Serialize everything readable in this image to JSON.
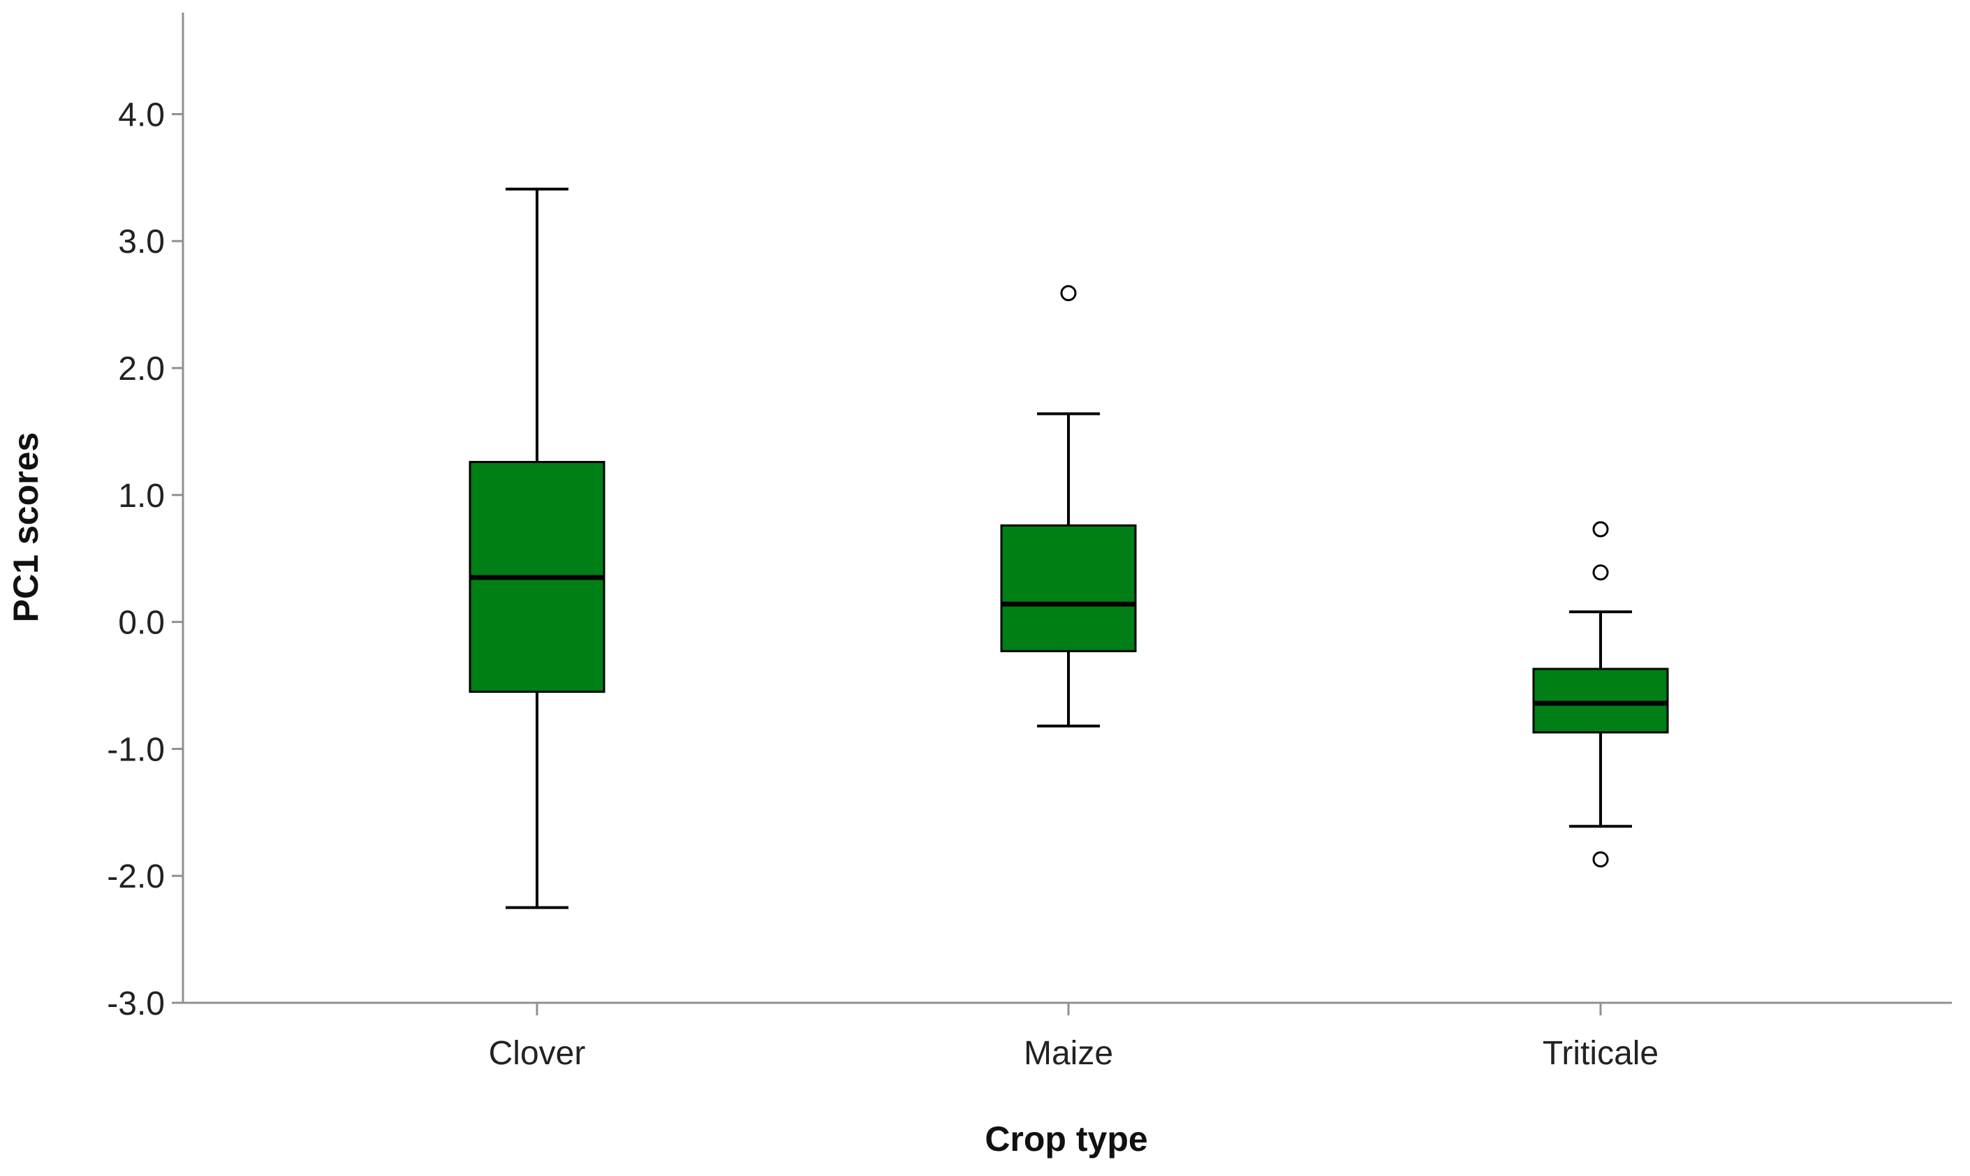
{
  "chart_data": {
    "type": "boxplot",
    "xlabel": "Crop type",
    "ylabel": "PC1 scores",
    "ylim": [
      -3.0,
      4.8
    ],
    "yticks": [
      -3.0,
      -2.0,
      -1.0,
      0.0,
      1.0,
      2.0,
      3.0,
      4.0
    ],
    "ytick_labels": [
      "-3.0",
      "-2.0",
      "-1.0",
      "0.0",
      "1.0",
      "2.0",
      "3.0",
      "4.0"
    ],
    "grid": false,
    "categories": [
      "Clover",
      "Maize",
      "Triticale"
    ],
    "boxes": [
      {
        "category": "Clover",
        "whisker_low": -2.25,
        "q1": -0.55,
        "median": 0.35,
        "q3": 1.26,
        "whisker_high": 3.41,
        "outliers": []
      },
      {
        "category": "Maize",
        "whisker_low": -0.82,
        "q1": -0.23,
        "median": 0.14,
        "q3": 0.76,
        "whisker_high": 1.64,
        "outliers": [
          2.59
        ]
      },
      {
        "category": "Triticale",
        "whisker_low": -1.61,
        "q1": -0.87,
        "median": -0.64,
        "q3": -0.37,
        "whisker_high": 0.08,
        "outliers": [
          0.73,
          0.39,
          -1.87
        ]
      }
    ],
    "colors": {
      "box_fill": "#007f16",
      "stroke": "#000000",
      "axis": "#909090",
      "outlier_fill": "#ffffff"
    }
  }
}
